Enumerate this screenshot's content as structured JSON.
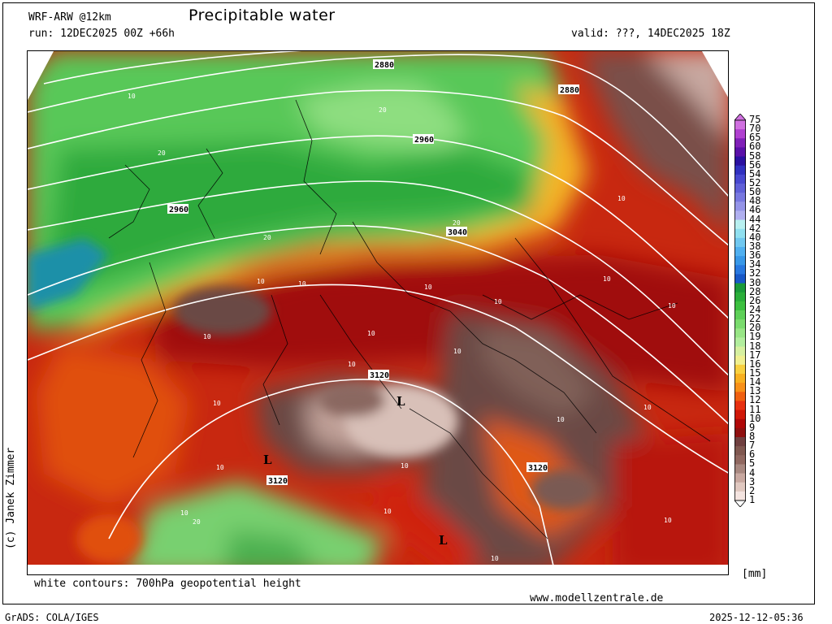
{
  "header": {
    "model": "WRF-ARW @12km",
    "title": "Precipitable water",
    "run": "run: 12DEC2025 00Z +66h",
    "valid": "valid: ???, 14DEC2025 18Z"
  },
  "footer": {
    "contour_note": "white contours: 700hPa geopotential height",
    "website": "www.modellzentrale.de",
    "software": "GrADS: COLA/IGES",
    "timestamp": "2025-12-12-05:36",
    "copyright": "(c) Janek Zimmer"
  },
  "colorbar": {
    "unit": "[mm]",
    "levels": [
      "75",
      "70",
      "65",
      "60",
      "58",
      "56",
      "54",
      "52",
      "50",
      "48",
      "46",
      "44",
      "42",
      "40",
      "38",
      "36",
      "34",
      "32",
      "30",
      "28",
      "26",
      "24",
      "22",
      "20",
      "19",
      "18",
      "17",
      "16",
      "15",
      "14",
      "13",
      "12",
      "11",
      "10",
      "9",
      "8",
      "7",
      "6",
      "5",
      "4",
      "3",
      "2",
      "1"
    ],
    "colors": [
      "#d070e0",
      "#b040d0",
      "#8020b8",
      "#5a10a8",
      "#2a10a0",
      "#3030c0",
      "#4848d0",
      "#6060d8",
      "#7878e0",
      "#9494e8",
      "#b0b0f0",
      "#b8f0f0",
      "#90e0f0",
      "#70c8f0",
      "#50b0f0",
      "#3898e8",
      "#2878e0",
      "#1858c8",
      "#1a9a3a",
      "#2aae3a",
      "#3cc040",
      "#5ed058",
      "#7adc6e",
      "#98e686",
      "#b2ee9e",
      "#d6f0a0",
      "#f0f090",
      "#f8d040",
      "#f8b020",
      "#f89018",
      "#f06010",
      "#e83010",
      "#d01808",
      "#b00808",
      "#901010",
      "#704040",
      "#805850",
      "#906860",
      "#a88880",
      "#c8a8a0",
      "#e0c8c0",
      "#f4e4e0"
    ]
  },
  "map_labels": {
    "heights": [
      "2880",
      "2880",
      "2960",
      "2960",
      "3040",
      "3120",
      "3120",
      "3120"
    ],
    "pw_values": [
      "10",
      "20"
    ],
    "lows": [
      "L",
      "L",
      "L"
    ]
  }
}
